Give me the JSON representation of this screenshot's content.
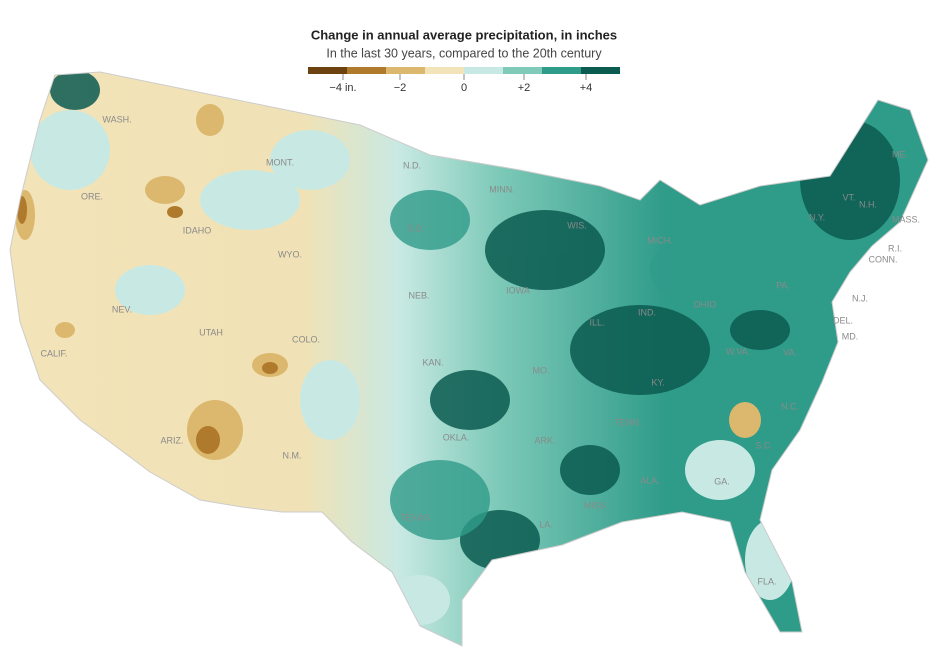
{
  "header": {
    "title": "Change in annual average precipitation, in inches",
    "subtitle": "In the last 30 years, compared to the 20th century"
  },
  "legend": {
    "colors": [
      "#6b4210",
      "#b07a2c",
      "#dcb86e",
      "#f3e3b8",
      "#c8e9e3",
      "#7fcab9",
      "#2f9b89",
      "#0b5b50"
    ],
    "labels": [
      "−4 in.",
      "−2",
      "0",
      "+2",
      "+4"
    ]
  },
  "states": [
    "WASH.",
    "ORE.",
    "CALIF.",
    "NEV.",
    "IDAHO",
    "MONT.",
    "WYO.",
    "UTAH",
    "COLO.",
    "ARIZ.",
    "N.M.",
    "N.D.",
    "S.D.",
    "NEB.",
    "KAN.",
    "OKLA.",
    "TEXAS",
    "MINN.",
    "IOWA",
    "MO.",
    "ARK.",
    "LA.",
    "WIS.",
    "ILL.",
    "MICH.",
    "IND.",
    "OHIO",
    "KY.",
    "TENN.",
    "MISS.",
    "ALA.",
    "GA.",
    "FLA.",
    "S.C.",
    "N.C.",
    "VA.",
    "W.VA.",
    "PA.",
    "N.Y.",
    "VT.",
    "N.H.",
    "ME.",
    "MASS.",
    "R.I.",
    "CONN.",
    "N.J.",
    "DEL.",
    "MD."
  ]
}
